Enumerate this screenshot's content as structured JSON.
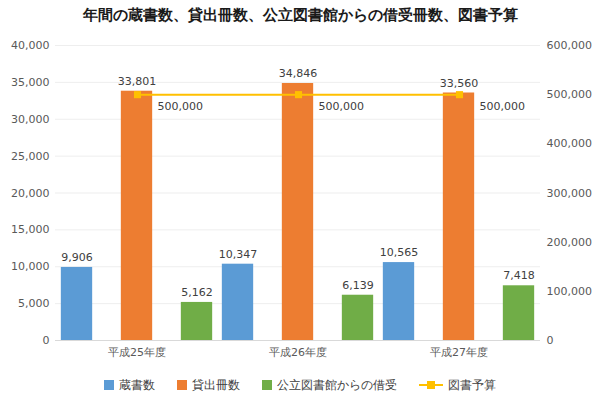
{
  "chart_data": {
    "type": "bar",
    "title": "年間の蔵書数、貸出冊数、公立図書館からの借受冊数、図書予算",
    "categories": [
      "平成25年度",
      "平成26年度",
      "平成27年度"
    ],
    "series": [
      {
        "name": "蔵書数",
        "color": "#5b9bd5",
        "values": [
          9906,
          10347,
          10565
        ],
        "value_labels": [
          "9,906",
          "10,347",
          "10,565"
        ]
      },
      {
        "name": "貸出冊数",
        "color": "#ed7d31",
        "values": [
          33801,
          34846,
          33560
        ],
        "value_labels": [
          "33,801",
          "34,846",
          "33,560"
        ]
      },
      {
        "name": "公立図書館からの借受",
        "color": "#70ad47",
        "values": [
          5162,
          6139,
          7418
        ],
        "value_labels": [
          "5,162",
          "6,139",
          "7,418"
        ]
      },
      {
        "name": "図書予算",
        "type": "line",
        "axis": "y2",
        "color": "#ffc000",
        "marker": "square",
        "values": [
          500000,
          500000,
          500000
        ],
        "value_labels": [
          "500,000",
          "500,000",
          "500,000"
        ]
      }
    ],
    "ylim": [
      0,
      40000
    ],
    "yticks": [
      0,
      {
        "value": 5000,
        "label": "5,000"
      },
      {
        "value": 10000,
        "label": "10,000"
      },
      {
        "value": 15000,
        "label": "15,000"
      },
      {
        "value": 20000,
        "label": "20,000"
      },
      {
        "value": 25000,
        "label": "25,000"
      },
      {
        "value": 30000,
        "label": "30,000"
      },
      {
        "value": 35000,
        "label": "35,000"
      },
      {
        "value": 40000,
        "label": "40,000"
      }
    ],
    "y2lim": [
      0,
      600000
    ],
    "y2ticks": [
      0,
      {
        "value": 100000,
        "label": "100,000"
      },
      {
        "value": 200000,
        "label": "200,000"
      },
      {
        "value": 300000,
        "label": "300,000"
      },
      {
        "value": 400000,
        "label": "400,000"
      },
      {
        "value": 500000,
        "label": "500,000"
      },
      {
        "value": 600000,
        "label": "600,000"
      }
    ],
    "grid": true,
    "data_labels": true,
    "legend": "bottom"
  }
}
